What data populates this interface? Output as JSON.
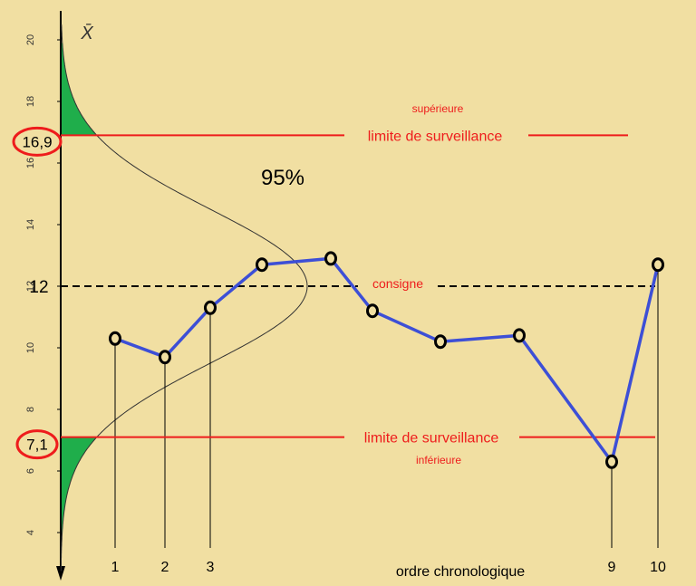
{
  "chart_data": {
    "type": "line",
    "ylabel": "X̄",
    "xlabel": "ordre chronologique",
    "ylim": [
      3.5,
      20.5
    ],
    "yticks": [
      "4",
      "6",
      "8",
      "10",
      "12",
      "14",
      "16",
      "18",
      "20"
    ],
    "x_tick_labels": [
      {
        "x": 1,
        "label": "1"
      },
      {
        "x": 2,
        "label": "2"
      },
      {
        "x": 3,
        "label": "3"
      },
      {
        "x": 9,
        "label": "9"
      },
      {
        "x": 10,
        "label": "10"
      }
    ],
    "points": [
      {
        "x": 1,
        "y": 10.3
      },
      {
        "x": 2,
        "y": 9.7
      },
      {
        "x": 3,
        "y": 11.3
      },
      {
        "x": 4,
        "y": 12.7
      },
      {
        "x": 5,
        "y": 12.9
      },
      {
        "x": 6,
        "y": 11.2
      },
      {
        "x": 7,
        "y": 10.2
      },
      {
        "x": 8,
        "y": 10.4
      },
      {
        "x": 9,
        "y": 6.3
      },
      {
        "x": 10,
        "y": 12.7
      }
    ],
    "target": {
      "value": 12,
      "value_label": "12",
      "label": "consigne"
    },
    "upper_limit": {
      "value": 16.9,
      "value_label": "16,9",
      "label": "limite de surveillance",
      "sublabel": "supérieure"
    },
    "lower_limit": {
      "value": 7.1,
      "value_label": "7,1",
      "label": "limite de surveillance",
      "sublabel": "inférieure"
    },
    "distribution": {
      "mean": 12,
      "sigma": 2.5,
      "label": "95%"
    },
    "colors": {
      "background": "#f1dfa2",
      "series": "#3d4fd6",
      "limits": "#ee1c1c",
      "tails": "#1fae4b",
      "target": "#000000"
    }
  }
}
